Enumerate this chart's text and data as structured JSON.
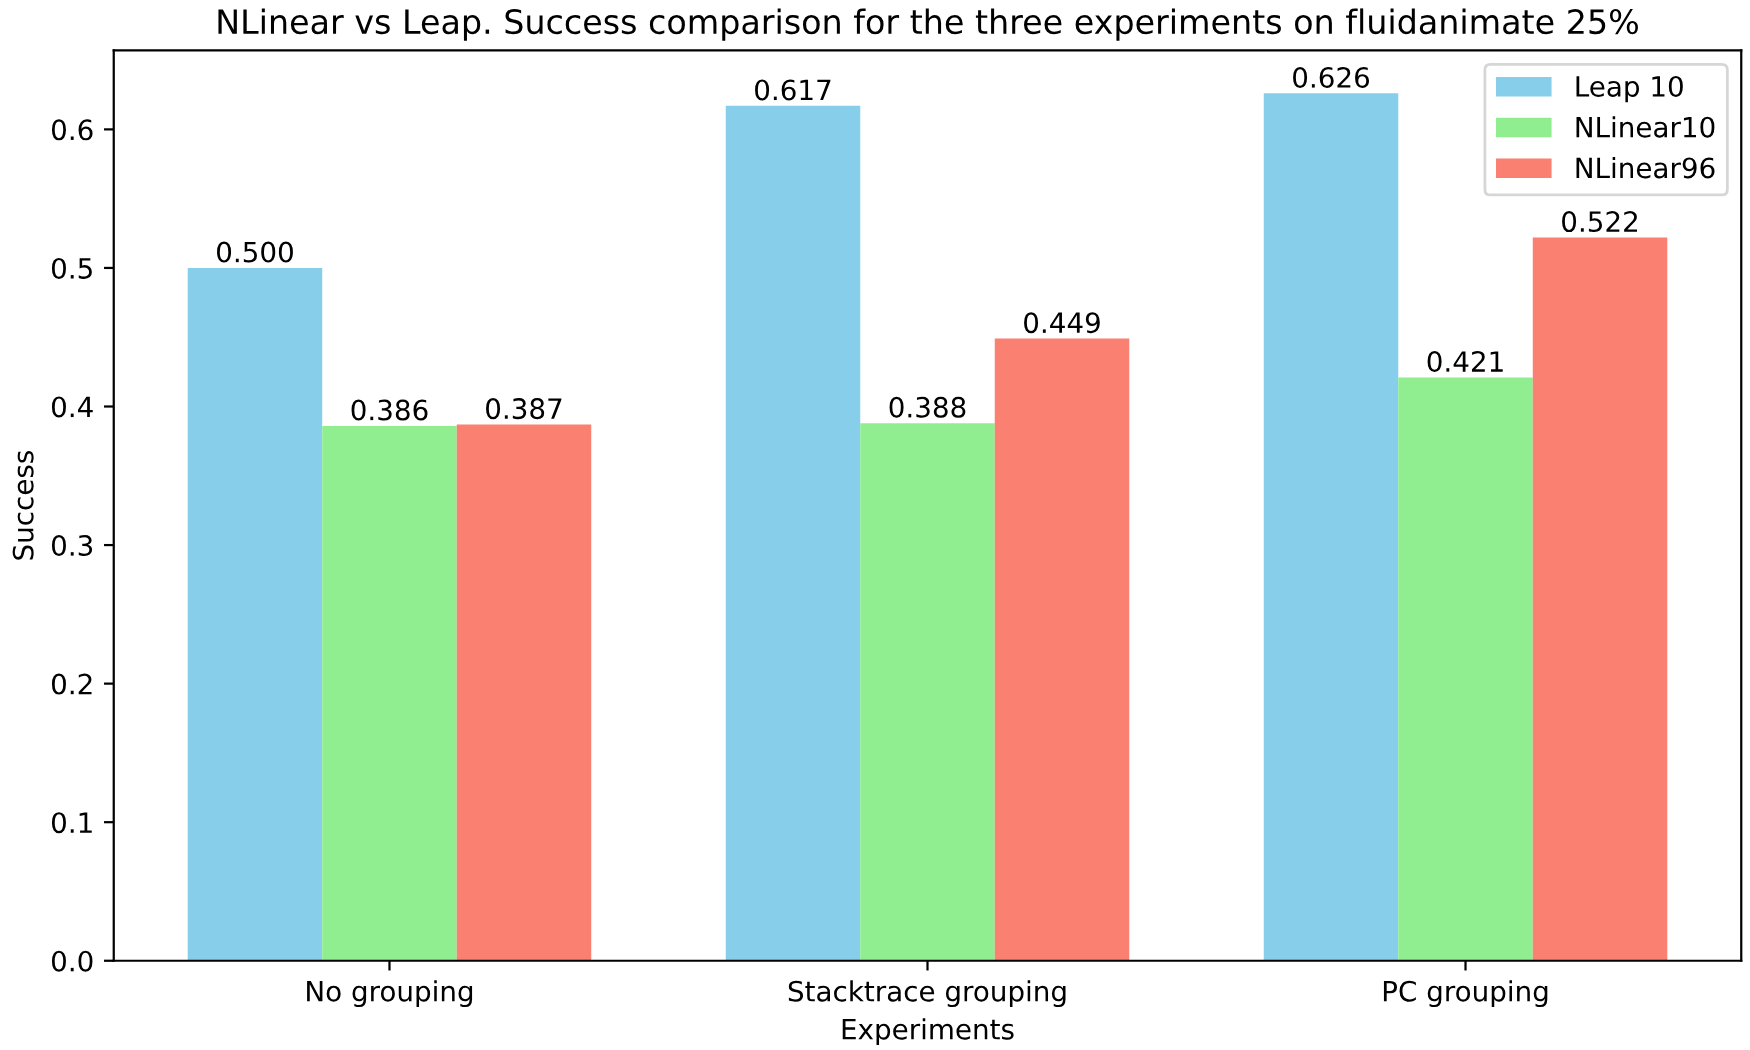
{
  "chart_data": {
    "type": "bar",
    "title": "NLinear vs Leap. Success comparison for the three experiments on fluidanimate 25%",
    "xlabel": "Experiments",
    "ylabel": "Success",
    "categories": [
      "No grouping",
      "Stacktrace grouping",
      "PC grouping"
    ],
    "series": [
      {
        "name": "Leap 10",
        "color": "#87ceeb",
        "values": [
          0.5,
          0.617,
          0.626
        ],
        "value_labels": [
          "0.500",
          "0.617",
          "0.626"
        ]
      },
      {
        "name": "NLinear10",
        "color": "#90ee90",
        "values": [
          0.386,
          0.388,
          0.421
        ],
        "value_labels": [
          "0.386",
          "0.388",
          "0.421"
        ]
      },
      {
        "name": "NLinear96",
        "color": "#fa8072",
        "values": [
          0.387,
          0.449,
          0.522
        ],
        "value_labels": [
          "0.387",
          "0.449",
          "0.522"
        ]
      }
    ],
    "ylim": [
      0,
      0.657
    ],
    "yticks": [
      {
        "value": 0,
        "label": "0.0"
      },
      {
        "value": 0.1,
        "label": "0.1"
      },
      {
        "value": 0.2,
        "label": "0.2"
      },
      {
        "value": 0.3,
        "label": "0.3"
      },
      {
        "value": 0.4,
        "label": "0.4"
      },
      {
        "value": 0.5,
        "label": "0.5"
      },
      {
        "value": 0.6,
        "label": "0.6"
      }
    ],
    "legend": "top right",
    "grid": false
  }
}
